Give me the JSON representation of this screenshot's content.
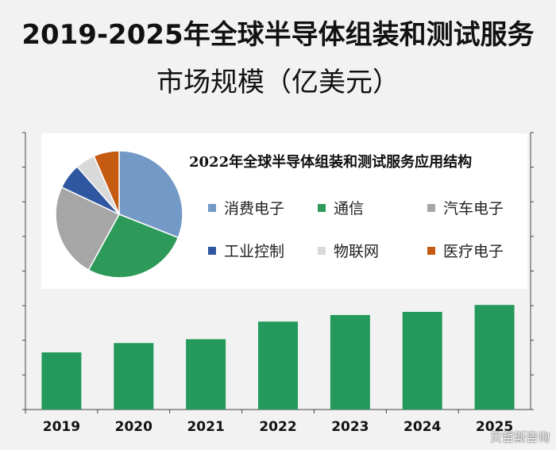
{
  "title_year_range": "2019-2025",
  "title_line1_rest": "年全球半导体组装和测试服务",
  "title_line2": "市场规模（亿美元）",
  "watermark": "贝哲斯咨询",
  "chart_data": [
    {
      "type": "bar",
      "title": "2019-2025年全球半导体组装和测试服务市场规模（亿美元）",
      "categories": [
        "2019",
        "2020",
        "2021",
        "2022",
        "2023",
        "2024",
        "2025"
      ],
      "values": [
        165,
        192,
        203,
        254,
        273,
        282,
        302
      ],
      "ylim": [
        0,
        800
      ],
      "y_tick_labels_visible": false,
      "grid": false,
      "bar_color": "#239a5c"
    },
    {
      "type": "pie",
      "title": "2022年全球半导体组装和测试服务应用结构",
      "labels": [
        "消费电子",
        "通信",
        "汽车电子",
        "工业控制",
        "物联网",
        "医疗电子"
      ],
      "values": [
        31,
        27,
        24,
        6.5,
        5,
        6.5
      ],
      "colors": [
        "#7399c6",
        "#2e9a5a",
        "#a6a6a6",
        "#2f56a0",
        "#d9d9d9",
        "#c55a11"
      ],
      "legend_placement": "right"
    }
  ]
}
